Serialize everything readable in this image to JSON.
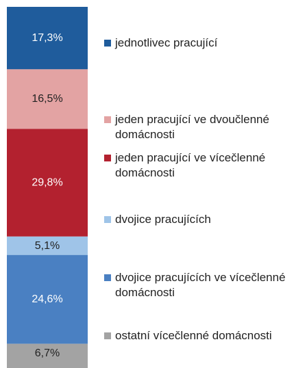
{
  "chart_data": {
    "type": "stacked_bar_100",
    "ylim": [
      0,
      100
    ],
    "series": [
      {
        "name": "jednotlivec pracující",
        "color": "#1f5c9c",
        "values": [
          17.3
        ],
        "value_labels": [
          "17,3%"
        ]
      },
      {
        "name": "jeden pracující ve dvoučlenné domácnosti",
        "color": "#e3a3a3",
        "values": [
          16.5
        ],
        "value_labels": [
          "16,5%"
        ]
      },
      {
        "name": "jeden pracující ve vícečlenné domácnosti",
        "color": "#b3212f",
        "values": [
          29.8
        ],
        "value_labels": [
          "29,8%"
        ]
      },
      {
        "name": "dvojice pracujících",
        "color": "#9fc4e8",
        "values": [
          5.1
        ],
        "value_labels": [
          "5,1%"
        ]
      },
      {
        "name": "dvojice pracujících ve vícečlenné domácnosti",
        "color": "#4a80c2",
        "values": [
          24.6
        ],
        "value_labels": [
          "24,6%"
        ]
      },
      {
        "name": "ostatní vícečlenné domácnosti",
        "color": "#a3a3a3",
        "values": [
          6.7
        ],
        "value_labels": [
          "6,7%"
        ]
      }
    ]
  }
}
